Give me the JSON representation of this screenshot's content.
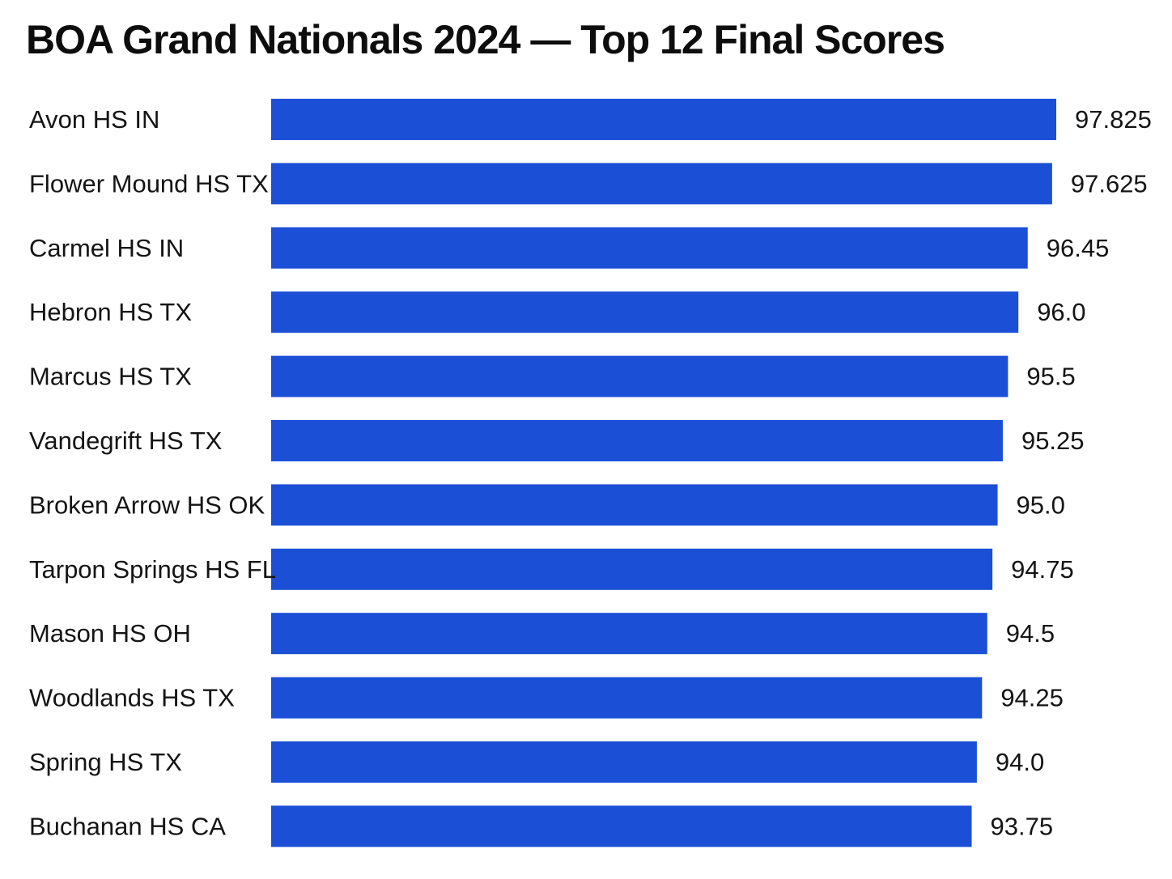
{
  "chart_data": {
    "type": "bar",
    "orientation": "horizontal",
    "title": "BOA Grand Nationals 2024 — Top 12 Final Scores",
    "categories": [
      "Avon HS IN",
      "Flower Mound HS TX",
      "Carmel HS IN",
      "Hebron HS TX",
      "Marcus HS TX",
      "Vandegrift HS TX",
      "Broken Arrow HS OK",
      "Tarpon Springs HS FL",
      "Mason HS OH",
      "Woodlands HS TX",
      "Spring HS TX",
      "Buchanan HS CA"
    ],
    "values": [
      97.825,
      97.625,
      96.45,
      96.0,
      95.5,
      95.25,
      95.0,
      94.75,
      94.5,
      94.25,
      94.0,
      93.75
    ],
    "value_labels": [
      "97.825",
      "97.625",
      "96.45",
      "96.0",
      "95.5",
      "95.25",
      "95.0",
      "94.75",
      "94.5",
      "94.25",
      "94.0",
      "93.75"
    ],
    "xlim": [
      60,
      97.825
    ],
    "bar_color": "#1a4fd6",
    "grid": false,
    "legend": "none",
    "xlabel": "",
    "ylabel": ""
  }
}
